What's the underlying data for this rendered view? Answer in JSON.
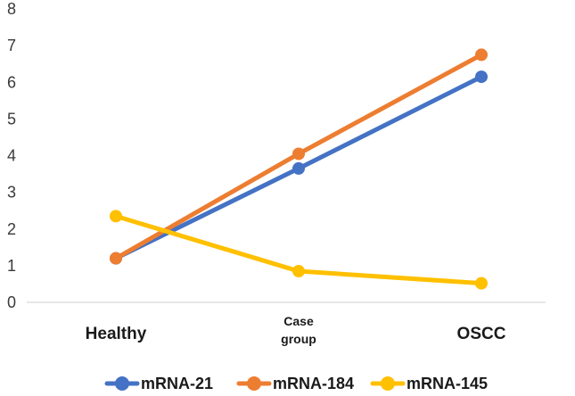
{
  "chart_data": {
    "type": "line",
    "categories": [
      "Healthy",
      "Case group",
      "OSCC"
    ],
    "category_lines": [
      [
        "Healthy"
      ],
      [
        "Case",
        "group"
      ],
      [
        "OSCC"
      ]
    ],
    "ylim": [
      0,
      8
    ],
    "yticks": [
      0,
      1,
      2,
      3,
      4,
      5,
      6,
      7,
      8
    ],
    "grid": false,
    "legend_position": "bottom",
    "series": [
      {
        "name": "mRNA-21",
        "color": "#4472C4",
        "values": [
          1.2,
          3.65,
          6.15
        ]
      },
      {
        "name": "mRNA-184",
        "color": "#ED7D31",
        "values": [
          1.2,
          4.05,
          6.75
        ]
      },
      {
        "name": "mRNA-145",
        "color": "#FFC000",
        "values": [
          2.35,
          0.85,
          0.52
        ]
      }
    ]
  }
}
